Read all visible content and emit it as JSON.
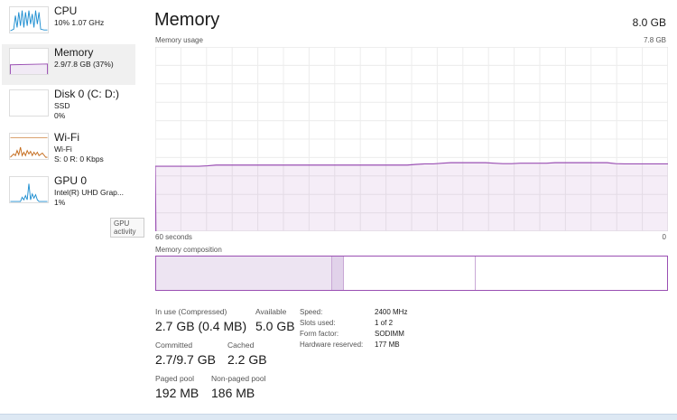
{
  "sidebar": {
    "items": [
      {
        "name": "CPU",
        "line1": "10%  1.07 GHz",
        "line2": "",
        "color": "#1f8fd1",
        "selected": false
      },
      {
        "name": "Memory",
        "line1": "2.9/7.8 GB (37%)",
        "line2": "",
        "color": "#9a4fb3",
        "selected": true
      },
      {
        "name": "Disk 0 (C: D:)",
        "line1": "SSD",
        "line2": "0%",
        "color": "#4ca64c",
        "selected": false
      },
      {
        "name": "Wi-Fi",
        "line1": "Wi-Fi",
        "line2": "S: 0 R: 0 Kbps",
        "color": "#c46a1a",
        "selected": false
      },
      {
        "name": "GPU 0",
        "line1": "Intel(R) UHD Grap...",
        "line2": "1%",
        "color": "#1f8fd1",
        "selected": false
      }
    ],
    "tooltip": "GPU activity"
  },
  "main": {
    "title": "Memory",
    "total": "8.0 GB",
    "usage_label": "Memory usage",
    "usage_max": "7.8 GB",
    "time_left": "60 seconds",
    "time_right": "0",
    "composition_label": "Memory composition"
  },
  "chart_data": {
    "type": "area",
    "ylim": [
      0,
      7.8
    ],
    "xlim": [
      60,
      0
    ],
    "grid": true,
    "color": "#9a4fb3",
    "values_gb": [
      2.75,
      2.75,
      2.75,
      2.75,
      2.75,
      2.75,
      2.77,
      2.8,
      2.8,
      2.8,
      2.8,
      2.8,
      2.8,
      2.8,
      2.8,
      2.8,
      2.8,
      2.8,
      2.8,
      2.8,
      2.8,
      2.8,
      2.8,
      2.8,
      2.8,
      2.8,
      2.8,
      2.8,
      2.8,
      2.8,
      2.83,
      2.85,
      2.85,
      2.88,
      2.9,
      2.9,
      2.9,
      2.9,
      2.9,
      2.88,
      2.86,
      2.86,
      2.88,
      2.88,
      2.88,
      2.88,
      2.9,
      2.9,
      2.9,
      2.9,
      2.9,
      2.9,
      2.9,
      2.86,
      2.85,
      2.85,
      2.85,
      2.85,
      2.85,
      2.85
    ]
  },
  "composition": [
    {
      "part": "in-use",
      "fraction": 0.345,
      "color": "#ede4f2"
    },
    {
      "part": "modified",
      "fraction": 0.023,
      "color": "#e1d2ea"
    },
    {
      "part": "standby",
      "fraction": 0.257,
      "color": "#ffffff"
    },
    {
      "part": "free",
      "fraction": 0.375,
      "color": "#ffffff"
    }
  ],
  "stats": {
    "in_use_label": "In use (Compressed)",
    "in_use": "2.7 GB (0.4 MB)",
    "available_label": "Available",
    "available": "5.0 GB",
    "committed_label": "Committed",
    "committed": "2.7/9.7 GB",
    "cached_label": "Cached",
    "cached": "2.2 GB",
    "paged_label": "Paged pool",
    "paged": "192 MB",
    "nonpaged_label": "Non-paged pool",
    "nonpaged": "186 MB"
  },
  "details": [
    {
      "key": "Speed:",
      "value": "2400 MHz"
    },
    {
      "key": "Slots used:",
      "value": "1 of 2"
    },
    {
      "key": "Form factor:",
      "value": "SODIMM"
    },
    {
      "key": "Hardware reserved:",
      "value": "177 MB"
    }
  ]
}
